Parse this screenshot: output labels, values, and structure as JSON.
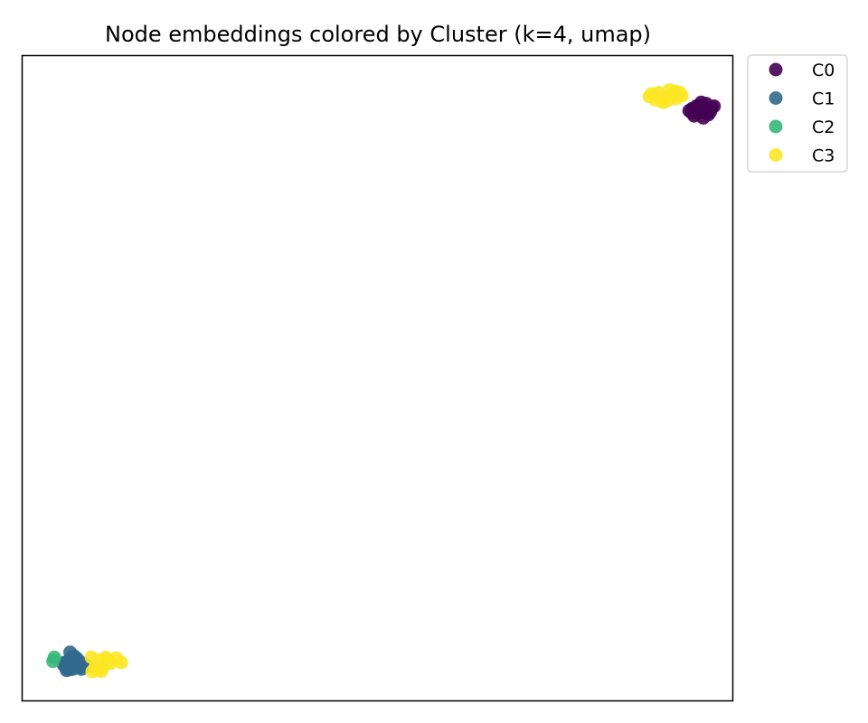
{
  "chart_data": {
    "type": "scatter",
    "title": "Node embeddings colored by Cluster (k=4, umap)",
    "xlabel": "",
    "ylabel": "",
    "xlim": [
      0,
      100
    ],
    "ylim": [
      0,
      100
    ],
    "axis_ticks": false,
    "grid": false,
    "legend_position": "outside-top-right",
    "series": [
      {
        "name": "C0",
        "color": "#440154",
        "points": [
          [
            95.2,
            92.2
          ],
          [
            96.0,
            91.4
          ],
          [
            95.0,
            91.0
          ],
          [
            96.5,
            90.8
          ],
          [
            94.2,
            91.7
          ],
          [
            95.5,
            92.7
          ],
          [
            97.0,
            91.9
          ],
          [
            94.5,
            90.6
          ],
          [
            96.2,
            92.5
          ],
          [
            95.8,
            90.3
          ],
          [
            93.8,
            91.4
          ],
          [
            96.8,
            91.3
          ],
          [
            95.3,
            91.8
          ],
          [
            94.8,
            92.1
          ],
          [
            95.6,
            91.2
          ],
          [
            97.3,
            92.1
          ],
          [
            94.1,
            91.1
          ]
        ]
      },
      {
        "name": "C1",
        "color": "#31688e",
        "points": [
          [
            7.0,
            6.8
          ],
          [
            6.5,
            6.2
          ],
          [
            7.5,
            5.8
          ],
          [
            6.2,
            5.3
          ],
          [
            7.2,
            5.0
          ],
          [
            6.0,
            6.0
          ],
          [
            7.8,
            6.6
          ],
          [
            6.8,
            7.6
          ],
          [
            6.3,
            4.8
          ],
          [
            8.2,
            5.3
          ],
          [
            7.0,
            5.6
          ],
          [
            8.6,
            5.9
          ],
          [
            6.7,
            6.4
          ],
          [
            7.4,
            7.0
          ],
          [
            5.9,
            5.6
          ],
          [
            6.6,
            4.9
          ],
          [
            8.4,
            5.0
          ],
          [
            9.3,
            5.5
          ]
        ]
      },
      {
        "name": "C2",
        "color": "#35b779",
        "points": [
          [
            4.6,
            6.8
          ],
          [
            4.4,
            6.2
          ]
        ]
      },
      {
        "name": "C3",
        "color": "#fde725",
        "points": [
          [
            88.5,
            94.0
          ],
          [
            89.5,
            94.2
          ],
          [
            90.5,
            93.4
          ],
          [
            91.5,
            94.0
          ],
          [
            89.0,
            93.1
          ],
          [
            92.0,
            93.3
          ],
          [
            90.2,
            92.7
          ],
          [
            91.0,
            94.6
          ],
          [
            88.2,
            93.6
          ],
          [
            92.5,
            94.2
          ],
          [
            90.8,
            93.0
          ],
          [
            89.8,
            92.9
          ],
          [
            91.8,
            94.4
          ],
          [
            92.8,
            93.7
          ],
          [
            9.8,
            6.8
          ],
          [
            10.8,
            6.4
          ],
          [
            11.5,
            5.4
          ],
          [
            10.3,
            5.2
          ],
          [
            10.6,
            4.8
          ],
          [
            9.9,
            4.6
          ],
          [
            11.2,
            4.7
          ],
          [
            12.2,
            6.3
          ],
          [
            13.3,
            6.7
          ],
          [
            14.0,
            6.0
          ],
          [
            12.5,
            5.9
          ],
          [
            11.8,
            6.8
          ]
        ]
      }
    ]
  }
}
